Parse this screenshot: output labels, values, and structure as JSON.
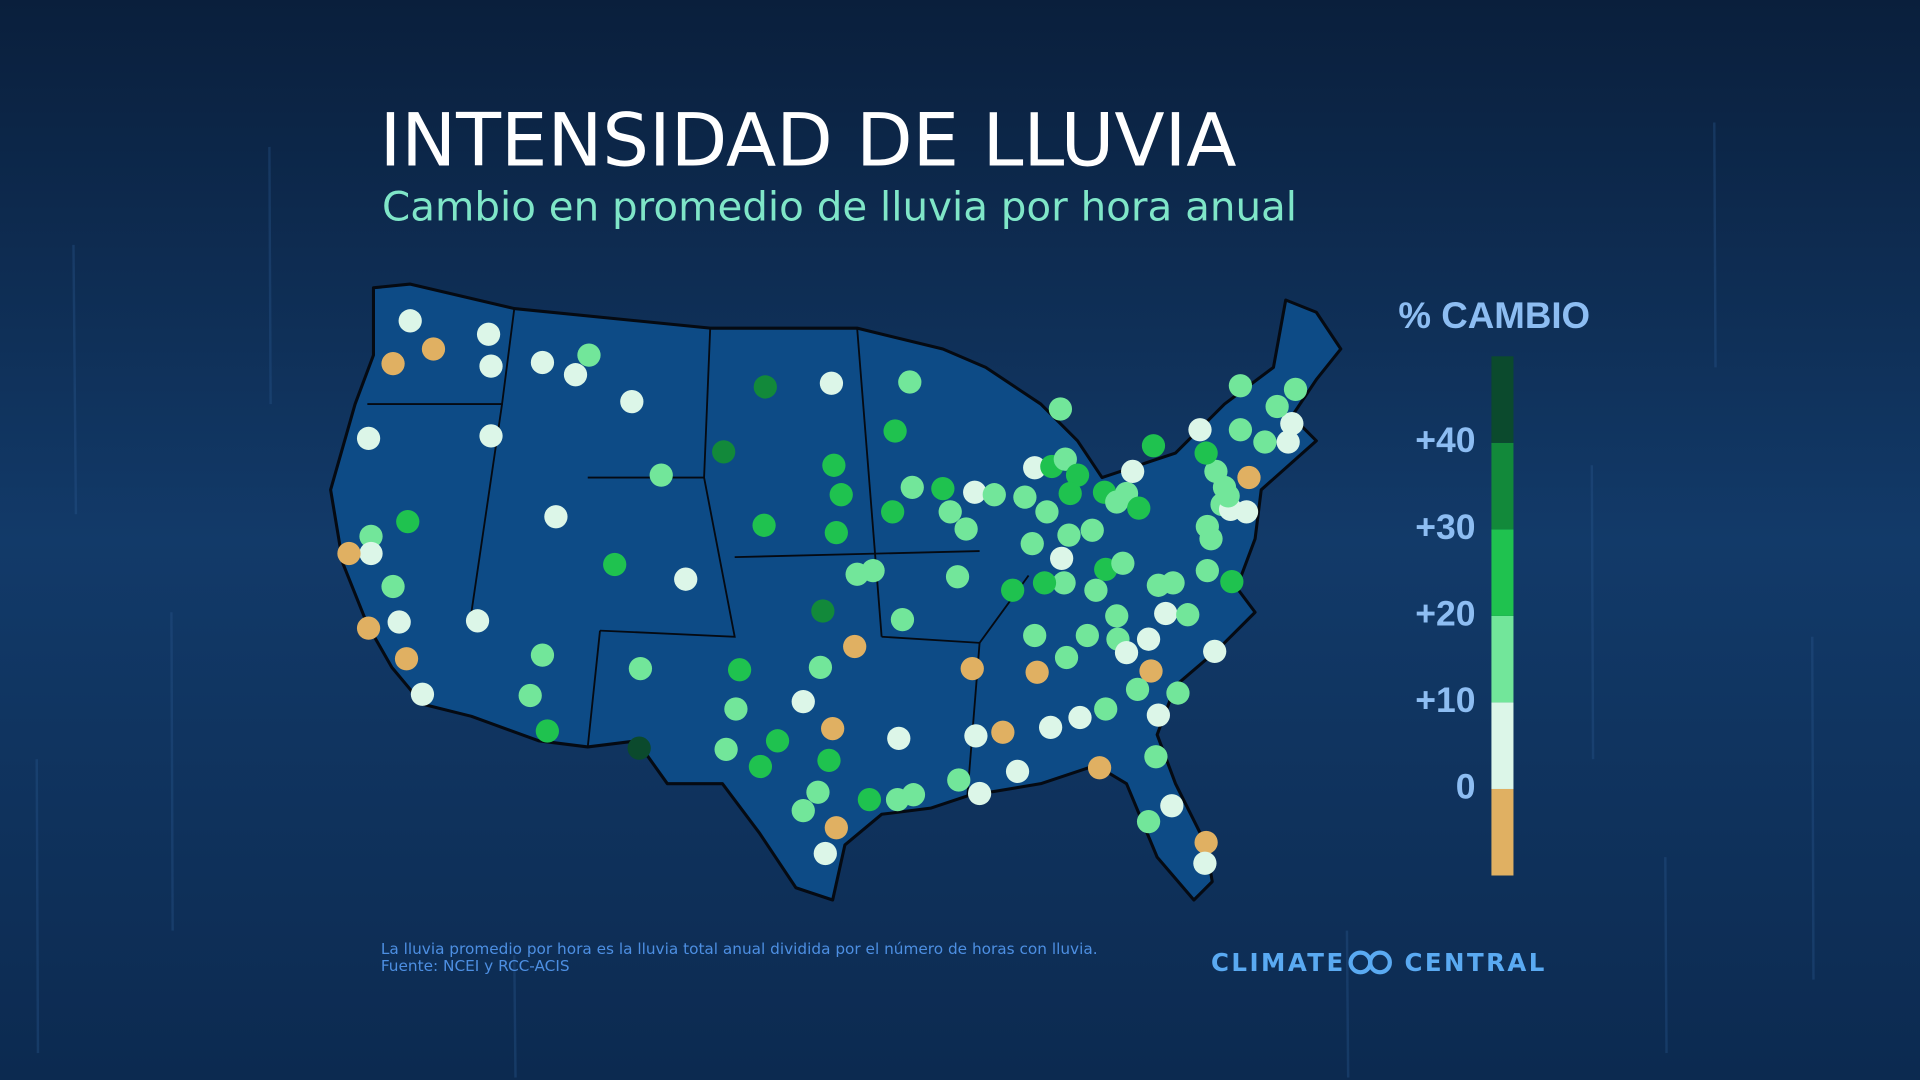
{
  "map": {
    "title": "INTENSIDAD DE LLUVIA",
    "subtitle": "Cambio en promedio de lluvia por hora anual",
    "legend": {
      "title": "% CAMBIO",
      "lim": [
        -10,
        50
      ],
      "ticks": [
        0,
        {
          "value": 10,
          "label": "+10"
        },
        {
          "value": 20,
          "label": "+20"
        },
        {
          "value": 30,
          "label": "+30"
        },
        {
          "value": 40,
          "label": "+40"
        }
      ],
      "colors": [
        "#e0b062",
        "#dcf6e8",
        "#72e69a",
        "#1fc24f",
        "#12893a",
        "#0b4a2d"
      ]
    },
    "stations": {
      "values": [
        5,
        -5,
        -5,
        5,
        5,
        5,
        5,
        15,
        5,
        5,
        5,
        15,
        5,
        25,
        15,
        5,
        -5,
        15,
        5,
        -5,
        -5,
        5,
        5,
        15,
        15,
        25,
        25,
        5,
        15,
        45,
        35,
        35,
        5,
        15,
        25,
        25,
        25,
        25,
        15,
        25,
        15,
        15,
        5,
        15,
        15,
        25,
        25,
        15,
        15,
        15,
        35,
        -5,
        15,
        25,
        15,
        5,
        15,
        25,
        25,
        -5,
        25,
        15,
        15,
        25,
        -5,
        5,
        5,
        15,
        15,
        15,
        5,
        5,
        -5,
        5,
        15,
        25,
        -5,
        15,
        -5,
        15,
        5,
        5,
        15,
        -5,
        15,
        15,
        15,
        25,
        15,
        15,
        5,
        15,
        15,
        15,
        5,
        25,
        15,
        25,
        25,
        25,
        15,
        15,
        25,
        5,
        25,
        25,
        15,
        15,
        15,
        5,
        5,
        -5,
        5,
        15,
        15,
        15,
        15,
        15,
        5,
        15,
        5,
        15,
        -5,
        5,
        5,
        15,
        25,
        15,
        15,
        15,
        15,
        15,
        -5,
        5,
        5,
        15,
        25,
        5,
        15,
        15,
        5,
        5,
        15,
        15,
        15
      ]
    },
    "footnote": [
      "La lluvia promedio por hora es la lluvia total anual dividida por el número de horas con lluvia.",
      "Fuente: NCEI y RCC-ACIS"
    ],
    "logo": {
      "left": "CLIMATE",
      "right": "CENTRAL"
    }
  }
}
